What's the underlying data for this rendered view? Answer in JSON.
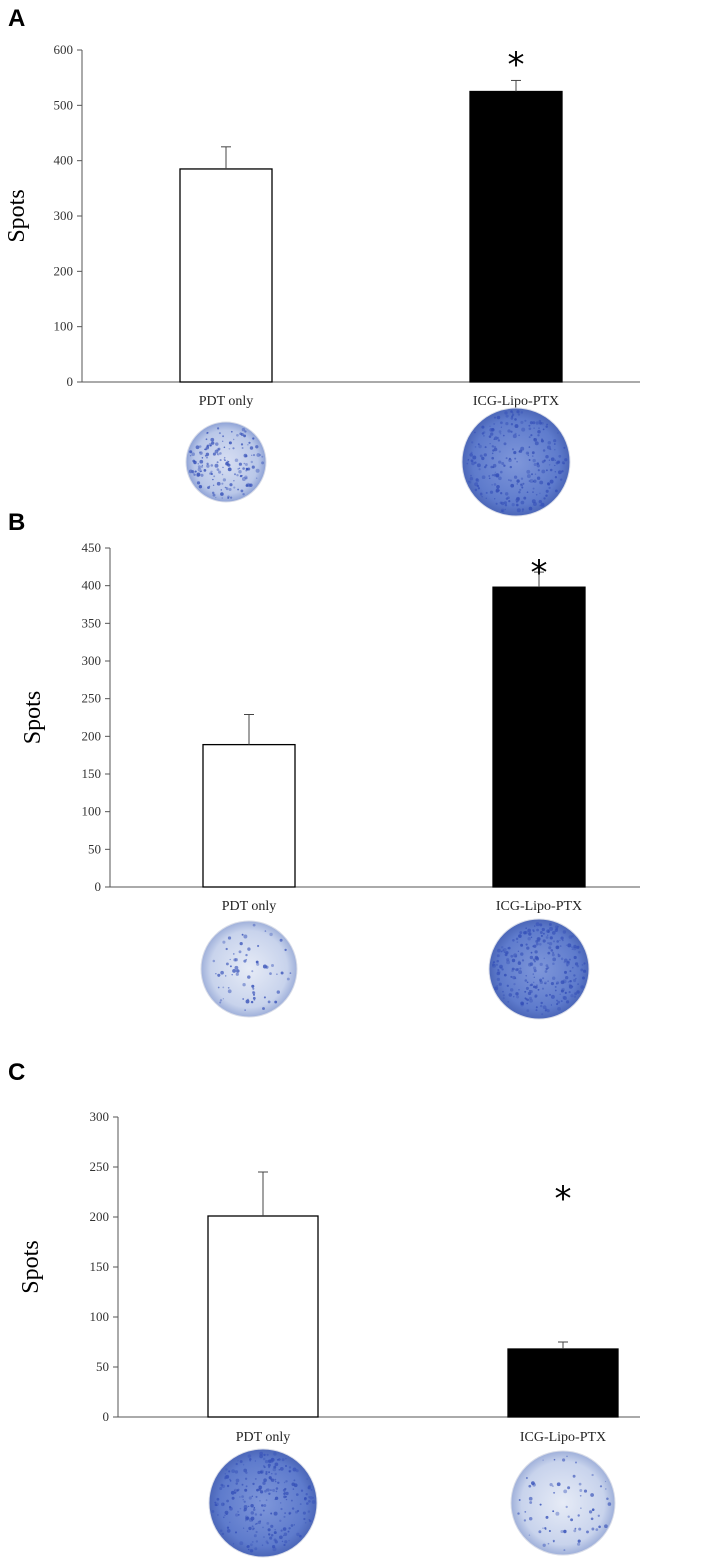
{
  "chart_data": [
    {
      "type": "bar",
      "panel": "A",
      "categories": [
        "PDT only",
        "ICG-Lipo-PTX"
      ],
      "values": [
        385,
        525
      ],
      "errors": [
        40,
        20
      ],
      "bar_colors": [
        "#ffffff",
        "#000000"
      ],
      "significance": [
        "",
        "*"
      ],
      "ylabel": "Spots",
      "ylim": [
        0,
        600
      ],
      "yticks": [
        0,
        100,
        200,
        300,
        400,
        500,
        600
      ],
      "well_images": [
        "low-density-well",
        "high-density-well"
      ]
    },
    {
      "type": "bar",
      "panel": "B",
      "categories": [
        "PDT only",
        "ICG-Lipo-PTX"
      ],
      "values": [
        189,
        398
      ],
      "errors": [
        40,
        20
      ],
      "bar_colors": [
        "#ffffff",
        "#000000"
      ],
      "significance": [
        "",
        "*"
      ],
      "ylabel": "Spots",
      "ylim": [
        0,
        450
      ],
      "yticks": [
        0,
        50,
        100,
        150,
        200,
        250,
        300,
        350,
        400,
        450
      ],
      "well_images": [
        "sparse-well",
        "dense-well"
      ]
    },
    {
      "type": "bar",
      "panel": "C",
      "categories": [
        "PDT only",
        "ICG-Lipo-PTX"
      ],
      "values": [
        201,
        68
      ],
      "errors": [
        44,
        7
      ],
      "bar_colors": [
        "#ffffff",
        "#000000"
      ],
      "significance": [
        "",
        "*"
      ],
      "ylabel": "Spots",
      "ylim": [
        0,
        300
      ],
      "yticks": [
        0,
        50,
        100,
        150,
        200,
        250,
        300
      ],
      "well_images": [
        "dense-well",
        "sparse-well"
      ]
    }
  ],
  "colors": {
    "axis": "#555555",
    "well_fill": "#8fa3d8",
    "spot": "#3550b8"
  }
}
